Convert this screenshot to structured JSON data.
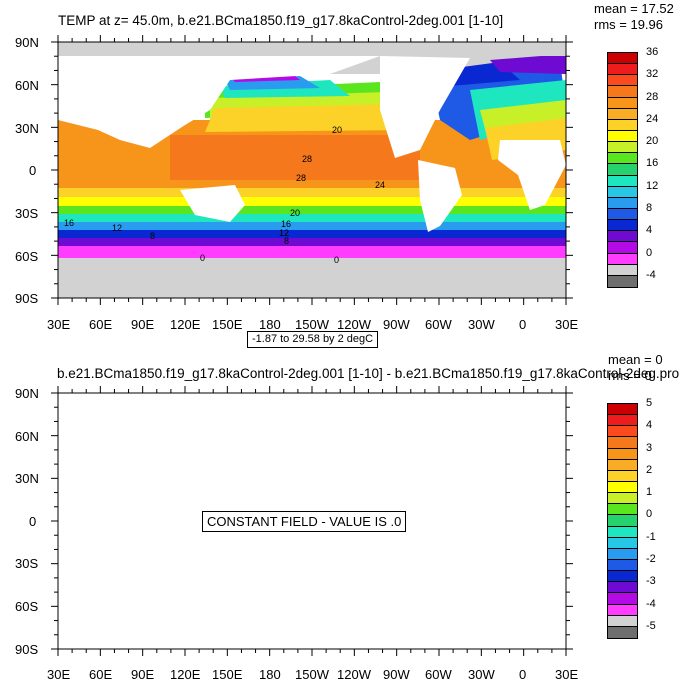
{
  "panel1": {
    "title": "TEMP at z=  45.0m, b.e21.BCma1850.f19_g17.8kaControl-2deg.001 [1-10]",
    "mean": "mean = 17.52",
    "rms": "rms = 19.96",
    "range_label": "-1.87 to 29.58 by 2 degC",
    "contour_labels": [
      "20",
      "28",
      "28",
      "24",
      "20",
      "16",
      "16",
      "12",
      "12",
      "8",
      "8",
      "0",
      "0"
    ]
  },
  "panel2": {
    "title": "b.e21.BCma1850.f19_g17.8kaControl-2deg.001 [1-10] - b.e21.BCma1850.f19_g17.8kaControl-2deg.pro",
    "mean": "mean = 0",
    "rms": "rms = 0",
    "message": "CONSTANT FIELD - VALUE IS .0"
  },
  "axes": {
    "lat_labels": [
      "90N",
      "60N",
      "30N",
      "0",
      "30S",
      "60S",
      "90S"
    ],
    "lon_labels": [
      "30E",
      "60E",
      "90E",
      "120E",
      "150E",
      "180",
      "150W",
      "120W",
      "90W",
      "60W",
      "30W",
      "0",
      "30E"
    ]
  },
  "colorbar1": {
    "labels": [
      "36",
      "32",
      "28",
      "24",
      "20",
      "16",
      "12",
      "8",
      "4",
      "0",
      "-4"
    ],
    "colors": [
      "#cc0000",
      "#ee1c1c",
      "#fa4a1e",
      "#f5781c",
      "#f7951a",
      "#f9ac26",
      "#fcd228",
      "#ffff00",
      "#c8f028",
      "#5ae61e",
      "#26d26e",
      "#1ee6be",
      "#26c8e6",
      "#2a9cf0",
      "#1e5ae6",
      "#0a28d2",
      "#6e0ad2",
      "#b40ae6",
      "#ff3cff",
      "#d2d2d2",
      "#6e6e6e"
    ]
  },
  "colorbar2": {
    "labels": [
      "5",
      "4",
      "3",
      "2",
      "1",
      "0",
      "-1",
      "-2",
      "-3",
      "-4",
      "-5"
    ],
    "colors": [
      "#cc0000",
      "#ee1c1c",
      "#fa4a1e",
      "#f5781c",
      "#f7951a",
      "#f9ac26",
      "#fcd228",
      "#ffff00",
      "#c8f028",
      "#5ae61e",
      "#26d26e",
      "#1ee6be",
      "#26c8e6",
      "#2a9cf0",
      "#1e5ae6",
      "#0a28d2",
      "#6e0ad2",
      "#b40ae6",
      "#ff3cff",
      "#d2d2d2",
      "#6e6e6e"
    ]
  }
}
